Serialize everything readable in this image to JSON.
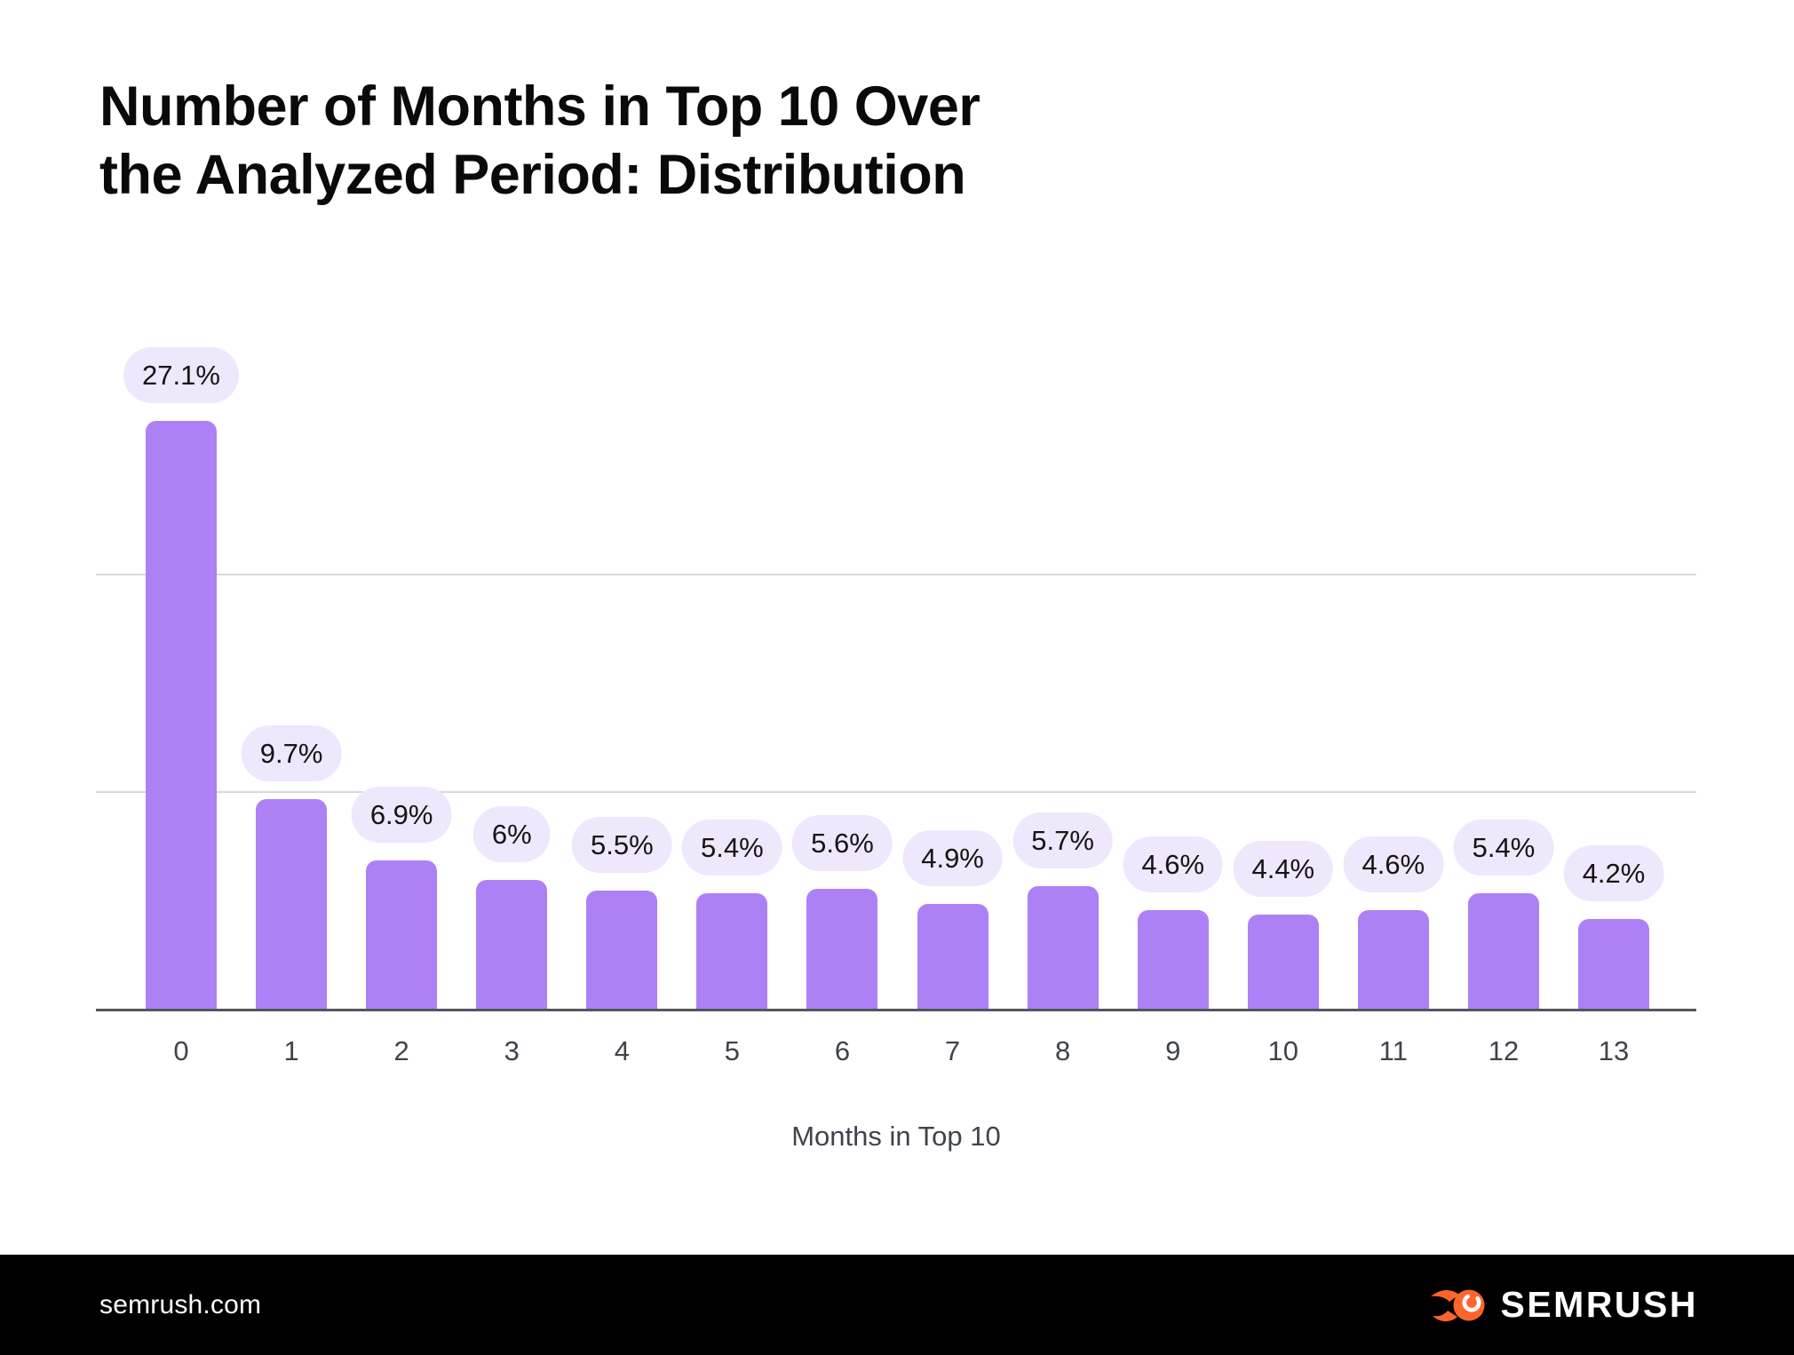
{
  "page": {
    "title": "Number of Months in Top 10 Over\nthe Analyzed Period: Distribution"
  },
  "chart_data": {
    "type": "bar",
    "title": "Number of Months in Top 10 Over the Analyzed Period: Distribution",
    "categories": [
      "0",
      "1",
      "2",
      "3",
      "4",
      "5",
      "6",
      "7",
      "8",
      "9",
      "10",
      "11",
      "12",
      "13"
    ],
    "values": [
      27.1,
      9.7,
      6.9,
      6,
      5.5,
      5.4,
      5.6,
      4.9,
      5.7,
      4.6,
      4.4,
      4.6,
      5.4,
      4.2
    ],
    "value_labels": [
      "27.1%",
      "9.7%",
      "6.9%",
      "6%",
      "5.5%",
      "5.4%",
      "5.6%",
      "4.9%",
      "5.7%",
      "4.6%",
      "4.4%",
      "4.6%",
      "5.4%",
      "4.2%"
    ],
    "xlabel": "Months in Top 10",
    "ylabel": "",
    "ylim": [
      0,
      30
    ],
    "gridlines_at_percent": [
      10,
      20
    ],
    "legend_position": "none",
    "bar_color": "#ae80f5",
    "label_pill_color": "#efe7fb",
    "axis_line_color": "#54565c",
    "gridline_color": "#d8d8da"
  },
  "footer": {
    "website": "semrush.com",
    "logo_text": "SEMRUSH",
    "logo_orange": "#ff642d"
  }
}
